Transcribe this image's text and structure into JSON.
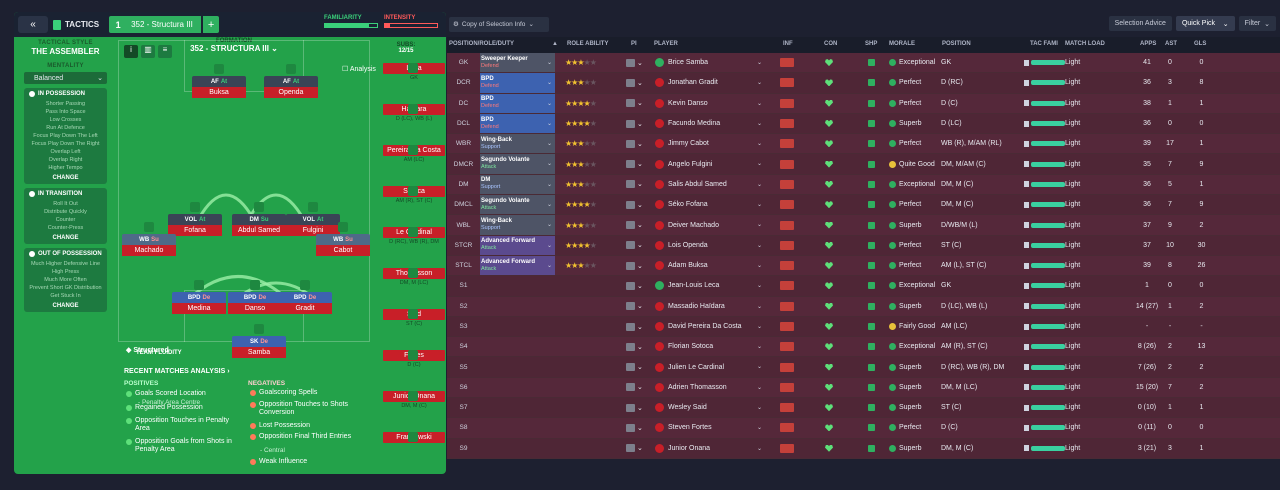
{
  "topbar": {
    "tactics_label": "TACTICS",
    "tactic_number": "1",
    "tactic_name": "352 - Structura III",
    "familiarity_label": "FAMILIARITY",
    "intensity_label": "INTENSITY",
    "familiarity_level": 0.85,
    "intensity_level": 0.1
  },
  "sidebar": {
    "tactical_style_head": "TACTICAL STYLE",
    "tactical_style": "THE ASSEMBLER",
    "mentality_head": "MENTALITY",
    "mentality": "Balanced",
    "in_possession": {
      "title": "IN POSSESSION",
      "items": [
        "Shorter Passing",
        "Pass Into Space",
        "Low Crosses",
        "Run At Defence",
        "Focus Play Down The Left",
        "Focus Play Down The Right",
        "Overlap Left",
        "Overlap Right",
        "Higher Tempo"
      ],
      "change": "CHANGE"
    },
    "in_transition": {
      "title": "IN TRANSITION",
      "items": [
        "Roll It Out",
        "Distribute Quickly",
        "Counter",
        "Counter-Press"
      ],
      "change": "CHANGE"
    },
    "out_of_possession": {
      "title": "OUT OF POSSESSION",
      "items": [
        "Much Higher Defensive Line",
        "High Press",
        "Much More Often",
        "Prevent Short GK Distribution",
        "Get Stuck In"
      ],
      "change": "CHANGE"
    }
  },
  "pitch": {
    "formation_head": "FORMATION",
    "formation_name": "352 - STRUCTURA III",
    "subs_label": "SUBS:",
    "subs_count": "12/15",
    "analysis_label": "Analysis",
    "team_fluidity_label": "TEAM FLUIDITY",
    "team_fluidity": "Structured",
    "players": [
      {
        "role": "AF",
        "duty": "At",
        "name": "Buksa"
      },
      {
        "role": "AF",
        "duty": "At",
        "name": "Openda"
      },
      {
        "role": "VOL",
        "duty": "At",
        "name": "Fofana"
      },
      {
        "role": "DM",
        "duty": "Su",
        "name": "Abdul Samed"
      },
      {
        "role": "VOL",
        "duty": "At",
        "name": "Fulgini"
      },
      {
        "role": "WB",
        "duty": "Su",
        "name": "Machado"
      },
      {
        "role": "WB",
        "duty": "Su",
        "name": "Cabot"
      },
      {
        "role": "BPD",
        "duty": "De",
        "name": "Medina"
      },
      {
        "role": "BPD",
        "duty": "De",
        "name": "Danso"
      },
      {
        "role": "BPD",
        "duty": "De",
        "name": "Gradit"
      },
      {
        "role": "SK",
        "duty": "De",
        "name": "Samba"
      }
    ],
    "subs": [
      {
        "name": "Leca",
        "pos": "GK"
      },
      {
        "name": "Haïdara",
        "pos": "D (LC), WB (L)"
      },
      {
        "name": "Pereira Da Costa",
        "pos": "AM (LC)"
      },
      {
        "name": "Sotoca",
        "pos": "AM (R), ST (C)"
      },
      {
        "name": "Le Cardinal",
        "pos": "D (RC), WB (R), DM"
      },
      {
        "name": "Thomasson",
        "pos": "DM, M (LC)"
      },
      {
        "name": "Said",
        "pos": "ST (C)"
      },
      {
        "name": "Fortes",
        "pos": "D (C)"
      },
      {
        "name": "Junior Onana",
        "pos": "DM, M (C)"
      },
      {
        "name": "Frankowski",
        "pos": ""
      }
    ]
  },
  "analysis": {
    "title": "RECENT MATCHES ANALYSIS ›",
    "positives_title": "POSITIVES",
    "negatives_title": "NEGATIVES",
    "positives": [
      "Goals Scored Location",
      "Regained Possession",
      "Opposition Touches in Penalty Area",
      "Opposition Goals from Shots in Penalty Area"
    ],
    "positives_sub": "- Penalty Area Centre",
    "negatives": [
      "Goalscoring Spells",
      "Opposition Touches to Shots Conversion",
      "Lost Possession",
      "Opposition Final Third Entries",
      "Weak Influence"
    ],
    "negatives_sub": "- Central"
  },
  "toolbar": {
    "copy_label": "Copy of Selection Info",
    "selection_advice": "Selection Advice",
    "quick_pick": "Quick Pick",
    "filter": "Filter"
  },
  "table": {
    "headers": {
      "position": "POSITION/ROLE/DUTY",
      "role_ability": "ROLE ABILITY",
      "pi": "PI",
      "player": "PLAYER",
      "inf": "INF",
      "con": "CON",
      "shp": "SHP",
      "morale": "MORALE",
      "pos": "POSITION",
      "tac_fam": "TAC FAMI",
      "match_load": "MATCH LOAD",
      "apps": "APPS",
      "ast": "AST",
      "gls": "GLS"
    },
    "rows": [
      {
        "slot": "GK",
        "role": "Sweeper Keeper",
        "duty": "Defend",
        "dutyc": "def",
        "rc": "grey",
        "stars": 3,
        "name": "Brice Samba",
        "morale": "Exceptional",
        "pos": "GK",
        "load": "Light",
        "apps": "41",
        "ast": "0",
        "gls": "0",
        "gk": true
      },
      {
        "slot": "DCR",
        "role": "BPD",
        "duty": "Defend",
        "dutyc": "def",
        "rc": "blue",
        "stars": 3,
        "name": "Jonathan Gradit",
        "morale": "Perfect",
        "pos": "D (RC)",
        "load": "Light",
        "apps": "36",
        "ast": "3",
        "gls": "8"
      },
      {
        "slot": "DC",
        "role": "BPD",
        "duty": "Defend",
        "dutyc": "def",
        "rc": "blue",
        "stars": 3.5,
        "name": "Kevin Danso",
        "morale": "Perfect",
        "pos": "D (C)",
        "load": "Light",
        "apps": "38",
        "ast": "1",
        "gls": "1"
      },
      {
        "slot": "DCL",
        "role": "BPD",
        "duty": "Defend",
        "dutyc": "def",
        "rc": "blue",
        "stars": 3.5,
        "name": "Facundo Medina",
        "morale": "Superb",
        "pos": "D (LC)",
        "load": "Light",
        "apps": "36",
        "ast": "0",
        "gls": "0"
      },
      {
        "slot": "WBR",
        "role": "Wing-Back",
        "duty": "Support",
        "dutyc": "sup",
        "rc": "grey",
        "stars": 3,
        "name": "Jimmy Cabot",
        "morale": "Perfect",
        "pos": "WB (R), M/AM (RL)",
        "load": "Light",
        "apps": "39",
        "ast": "17",
        "gls": "1"
      },
      {
        "slot": "DMCR",
        "role": "Segundo Volante",
        "duty": "Attack",
        "dutyc": "att",
        "rc": "grey",
        "stars": 3,
        "name": "Angelo Fulgini",
        "morale": "Quite Good",
        "mor_y": true,
        "pos": "DM, M/AM (C)",
        "load": "Light",
        "apps": "35",
        "ast": "7",
        "gls": "9"
      },
      {
        "slot": "DM",
        "role": "DM",
        "duty": "Support",
        "dutyc": "sup",
        "rc": "grey",
        "stars": 3,
        "name": "Salis Abdul Samed",
        "morale": "Exceptional",
        "pos": "DM, M (C)",
        "load": "Light",
        "apps": "36",
        "ast": "5",
        "gls": "1"
      },
      {
        "slot": "DMCL",
        "role": "Segundo Volante",
        "duty": "Attack",
        "dutyc": "att",
        "rc": "grey",
        "stars": 4,
        "name": "Séko Fofana",
        "morale": "Perfect",
        "pos": "DM, M (C)",
        "load": "Light",
        "apps": "36",
        "ast": "7",
        "gls": "9"
      },
      {
        "slot": "WBL",
        "role": "Wing-Back",
        "duty": "Support",
        "dutyc": "sup",
        "rc": "grey",
        "stars": 2.5,
        "name": "Deiver Machado",
        "morale": "Superb",
        "pos": "D/WB/M (L)",
        "load": "Light",
        "apps": "37",
        "ast": "9",
        "gls": "2"
      },
      {
        "slot": "STCR",
        "role": "Advanced Forward",
        "duty": "Attack",
        "dutyc": "att",
        "rc": "purple",
        "stars": 4,
        "name": "Lois Openda",
        "morale": "Perfect",
        "pos": "ST (C)",
        "load": "Light",
        "apps": "37",
        "ast": "10",
        "gls": "30"
      },
      {
        "slot": "STCL",
        "role": "Advanced Forward",
        "duty": "Attack",
        "dutyc": "att",
        "rc": "purple",
        "stars": 3,
        "name": "Adam Buksa",
        "morale": "Perfect",
        "pos": "AM (L), ST (C)",
        "load": "Light",
        "apps": "39",
        "ast": "8",
        "gls": "26"
      },
      {
        "slot": "S1",
        "role": "",
        "duty": "",
        "stars": 0,
        "name": "Jean-Louis Leca",
        "morale": "Exceptional",
        "pos": "GK",
        "load": "Light",
        "apps": "1",
        "ast": "0",
        "gls": "0",
        "gk": true
      },
      {
        "slot": "S2",
        "role": "",
        "duty": "",
        "stars": 0,
        "name": "Massadio Haïdara",
        "morale": "Superb",
        "pos": "D (LC), WB (L)",
        "load": "Light",
        "apps": "14 (27)",
        "ast": "1",
        "gls": "2"
      },
      {
        "slot": "S3",
        "role": "",
        "duty": "",
        "stars": 0,
        "name": "David Pereira Da Costa",
        "morale": "Fairly Good",
        "mor_y": true,
        "pos": "AM (LC)",
        "load": "Light",
        "apps": "-",
        "ast": "-",
        "gls": "-"
      },
      {
        "slot": "S4",
        "role": "",
        "duty": "",
        "stars": 0,
        "name": "Florian Sotoca",
        "morale": "Exceptional",
        "pos": "AM (R), ST (C)",
        "load": "Light",
        "apps": "8 (26)",
        "ast": "2",
        "gls": "13"
      },
      {
        "slot": "S5",
        "role": "",
        "duty": "",
        "stars": 0,
        "name": "Julien Le Cardinal",
        "morale": "Superb",
        "pos": "D (RC), WB (R), DM",
        "load": "Light",
        "apps": "7 (26)",
        "ast": "2",
        "gls": "2"
      },
      {
        "slot": "S6",
        "role": "",
        "duty": "",
        "stars": 0,
        "name": "Adrien Thomasson",
        "morale": "Superb",
        "pos": "DM, M (LC)",
        "load": "Light",
        "apps": "15 (20)",
        "ast": "7",
        "gls": "2"
      },
      {
        "slot": "S7",
        "role": "",
        "duty": "",
        "stars": 0,
        "name": "Wesley Said",
        "morale": "Superb",
        "pos": "ST (C)",
        "load": "Light",
        "apps": "0 (10)",
        "ast": "1",
        "gls": "1"
      },
      {
        "slot": "S8",
        "role": "",
        "duty": "",
        "stars": 0,
        "name": "Steven Fortes",
        "morale": "Perfect",
        "pos": "D (C)",
        "load": "Light",
        "apps": "0 (11)",
        "ast": "0",
        "gls": "0"
      },
      {
        "slot": "S9",
        "role": "",
        "duty": "",
        "stars": 0,
        "name": "Junior Onana",
        "morale": "Superb",
        "pos": "DM, M (C)",
        "load": "Light",
        "apps": "3 (21)",
        "ast": "3",
        "gls": "1"
      }
    ]
  },
  "colors": {
    "pitch": "#23a24a",
    "accent": "#3ad07a",
    "red": "#c81f28"
  }
}
